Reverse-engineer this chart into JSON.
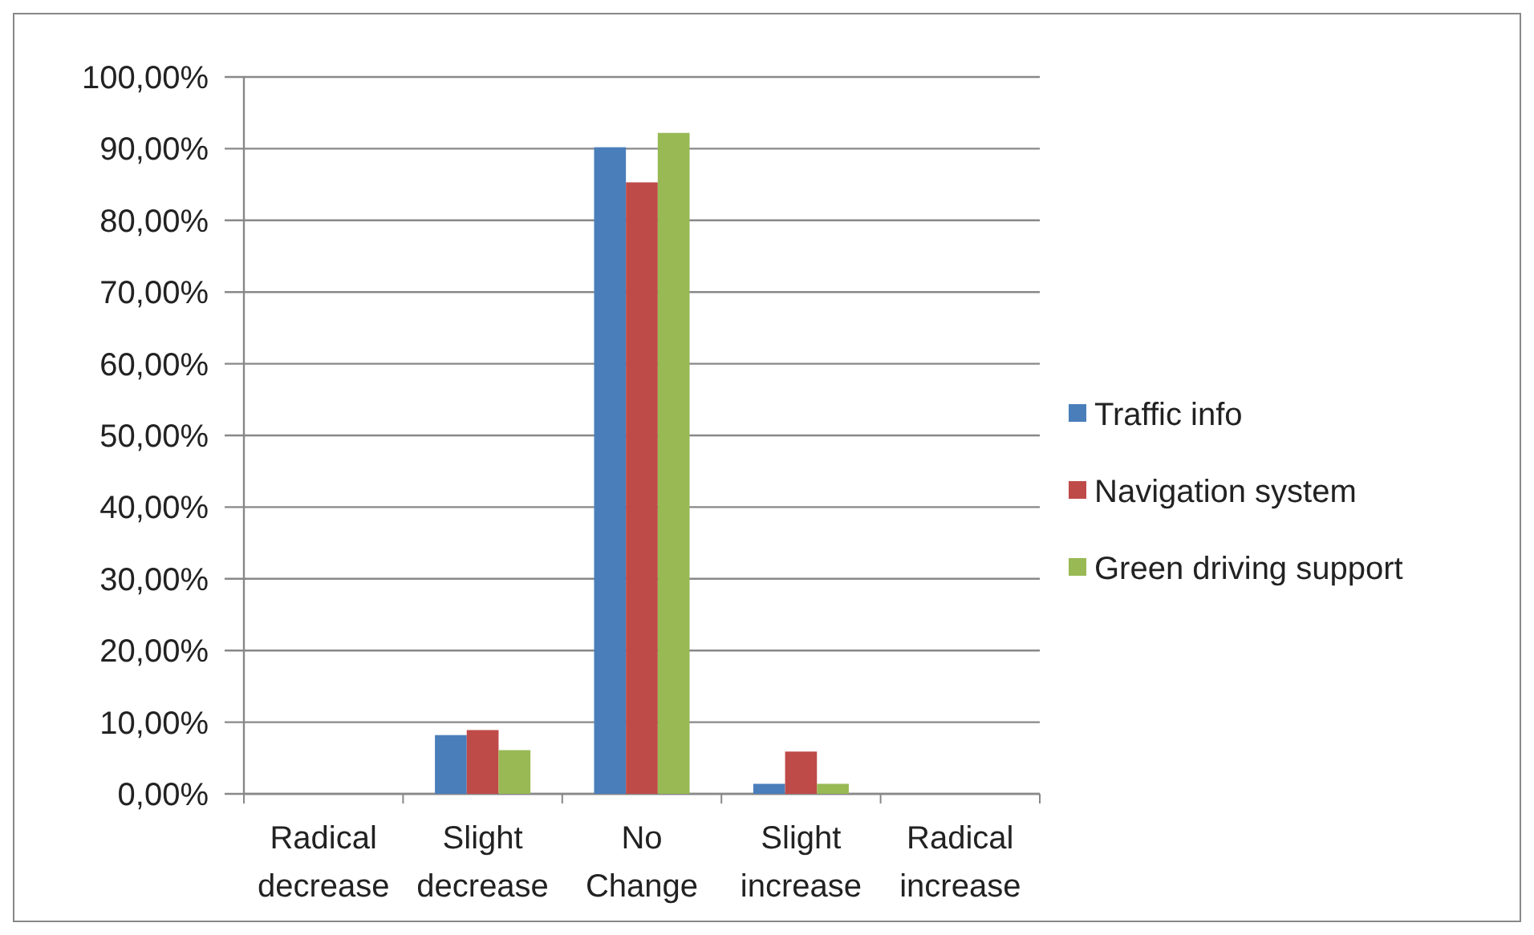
{
  "chart_data": {
    "type": "bar",
    "categories": [
      "Radical decrease",
      "Slight decrease",
      "No Change",
      "Slight increase",
      "Radical increase"
    ],
    "series": [
      {
        "name": "Traffic info",
        "color": "#4a7ebb",
        "values": [
          0,
          8.2,
          90.2,
          1.4,
          0
        ]
      },
      {
        "name": "Navigation system",
        "color": "#be4b48",
        "values": [
          0,
          8.9,
          85.3,
          5.9,
          0
        ]
      },
      {
        "name": "Green driving support",
        "color": "#98b954",
        "values": [
          0,
          6.1,
          92.2,
          1.4,
          0
        ]
      }
    ],
    "ylim": [
      0,
      100
    ],
    "yticks": [
      {
        "value": 0,
        "label": "0,00%"
      },
      {
        "value": 10,
        "label": "10,00%"
      },
      {
        "value": 20,
        "label": "20,00%"
      },
      {
        "value": 30,
        "label": "30,00%"
      },
      {
        "value": 40,
        "label": "40,00%"
      },
      {
        "value": 50,
        "label": "50,00%"
      },
      {
        "value": 60,
        "label": "60,00%"
      },
      {
        "value": 70,
        "label": "70,00%"
      },
      {
        "value": 80,
        "label": "80,00%"
      },
      {
        "value": 90,
        "label": "90,00%"
      },
      {
        "value": 100,
        "label": "100,00%"
      }
    ],
    "grid": "y",
    "legend": "right"
  }
}
